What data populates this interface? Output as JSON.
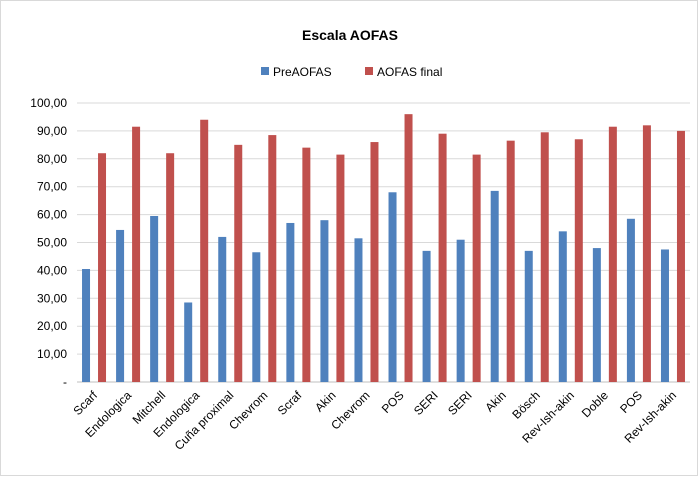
{
  "chart_data": {
    "type": "bar",
    "title": "Escala AOFAS",
    "categories": [
      "Scarf",
      "Endologica",
      "Mitchell",
      "Endologica",
      "Cuña proximal",
      "Chevrom",
      "Scraf",
      "Akin",
      "Chevrom",
      "POS",
      "SERI",
      "SERI",
      "Akin",
      "Bösch",
      "Rev-Ish-akin",
      "Doble",
      "POS",
      "Rev-Ish-akin"
    ],
    "series": [
      {
        "name": "PreAOFAS",
        "color": "#4f81bd",
        "values": [
          40.5,
          54.5,
          59.5,
          28.5,
          52.0,
          46.5,
          57.0,
          58.0,
          51.5,
          68.0,
          47.0,
          51.0,
          68.5,
          47.0,
          54.0,
          48.0,
          58.5,
          47.5
        ]
      },
      {
        "name": "AOFAS final",
        "color": "#c0504d",
        "values": [
          82.0,
          91.5,
          82.0,
          94.0,
          85.0,
          88.5,
          84.0,
          81.5,
          86.0,
          96.0,
          89.0,
          81.5,
          86.5,
          89.5,
          87.0,
          91.5,
          92.0,
          90.0
        ]
      }
    ],
    "ylim": [
      0,
      100
    ],
    "yticks": [
      "-",
      "10,00",
      "20,00",
      "30,00",
      "40,00",
      "50,00",
      "60,00",
      "70,00",
      "80,00",
      "90,00",
      "100,00"
    ],
    "grid": true,
    "legend_position": "top"
  }
}
